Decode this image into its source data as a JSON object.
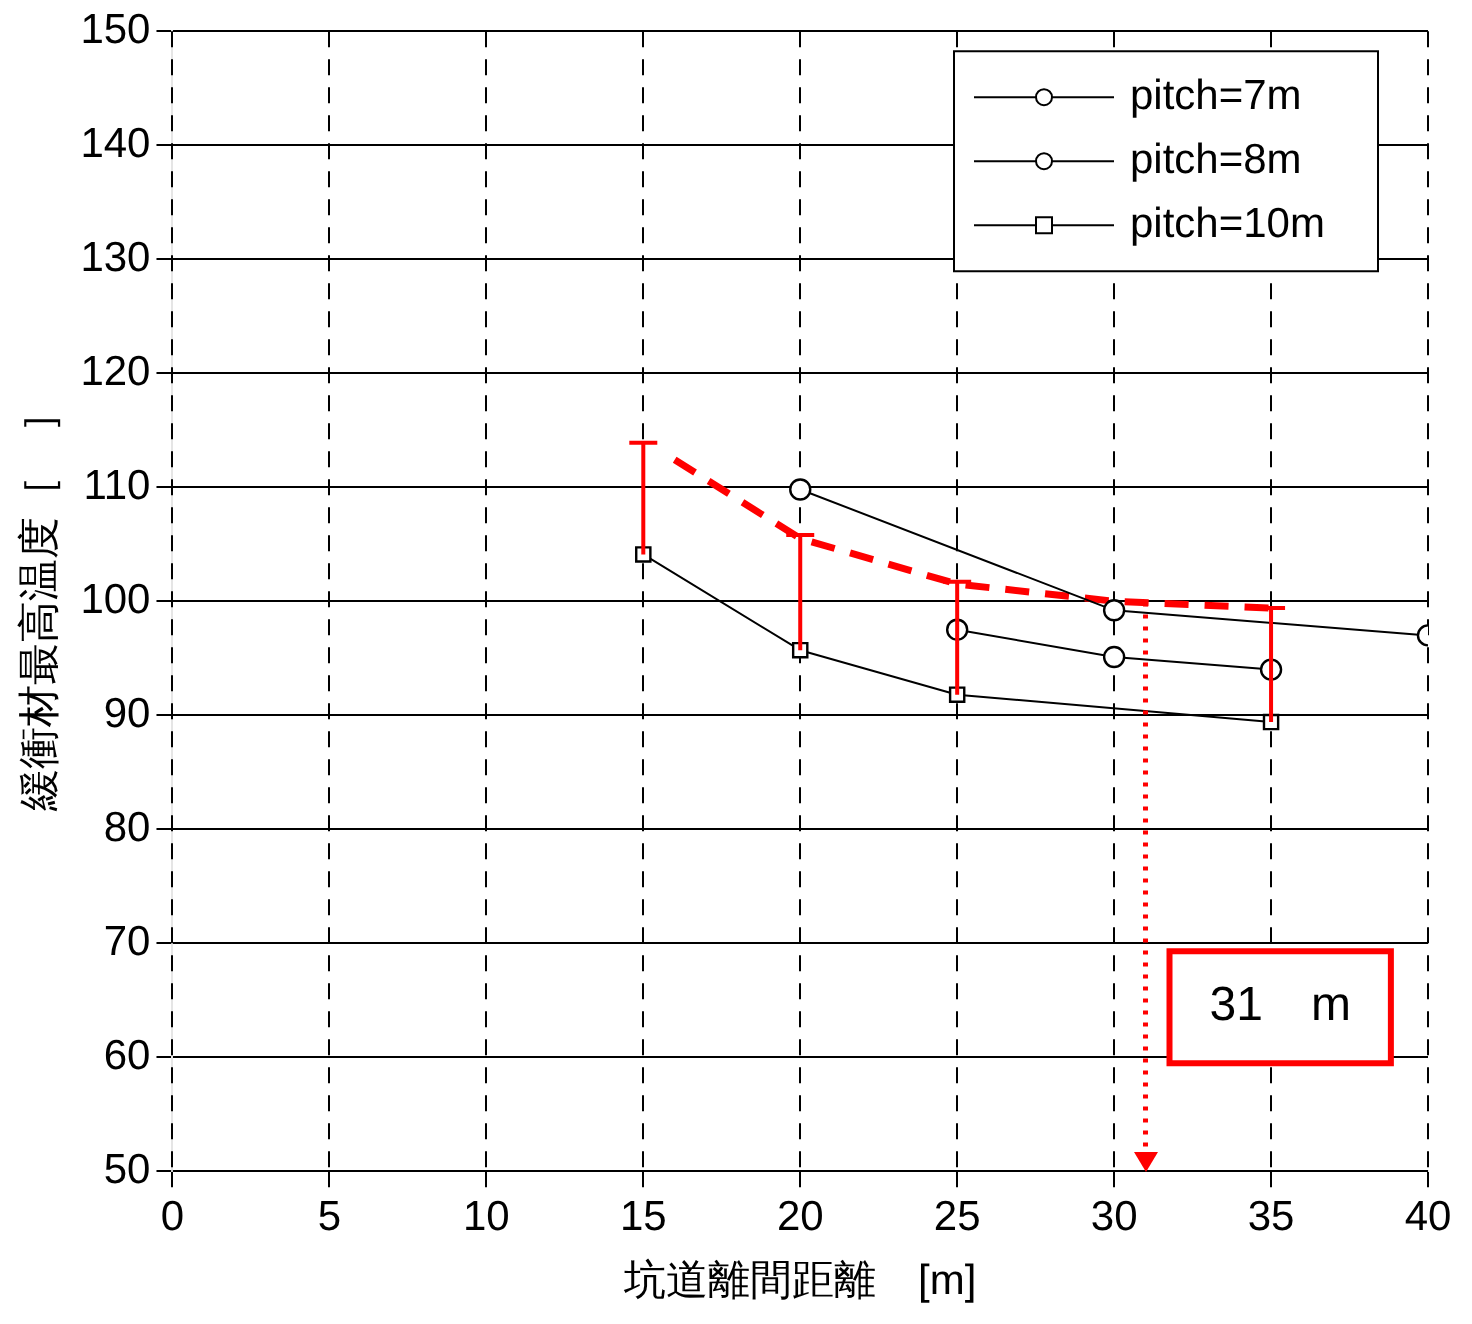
{
  "chart_data": {
    "type": "line",
    "xlabel": "坑道離間距離　[m]",
    "ylabel": "緩衝材最高温度［　］",
    "xlim": [
      0,
      40
    ],
    "ylim": [
      50,
      150
    ],
    "xticks": [
      0,
      5,
      10,
      15,
      20,
      25,
      30,
      35,
      40
    ],
    "yticks": [
      50,
      60,
      70,
      80,
      90,
      100,
      110,
      120,
      130,
      140,
      150
    ],
    "grid": true,
    "legend": "top right",
    "series": [
      {
        "name": "pitch=7m",
        "color": "#000000",
        "marker": "circle",
        "x": [
          20,
          30,
          40
        ],
        "values": [
          109.8,
          99.2,
          97.0
        ]
      },
      {
        "name": "pitch=8m",
        "color": "#000000",
        "marker": "circle",
        "x": [
          25,
          30,
          35
        ],
        "values": [
          97.5,
          95.1,
          94.0
        ]
      },
      {
        "name": "pitch=10m",
        "color": "#000000",
        "marker": "square",
        "x": [
          15,
          20,
          25,
          35
        ],
        "values": [
          104.1,
          95.7,
          91.8,
          89.4
        ],
        "errors": [
          [
            104.1,
            113.9
          ],
          [
            95.7,
            105.8
          ],
          [
            91.8,
            101.7
          ],
          [
            89.4,
            99.4
          ]
        ]
      },
      {
        "color": "#ff0000",
        "marker": "none",
        "line_style": "dashed",
        "x": [
          16,
          20,
          25,
          30,
          35
        ],
        "values": [
          112.4,
          105.5,
          101.5,
          100.0,
          99.4
        ]
      }
    ],
    "ref_lines": [
      {
        "axis": "x",
        "value": 31,
        "label": "31　m",
        "color": "#ff0000",
        "line_style": "dotted"
      }
    ]
  }
}
